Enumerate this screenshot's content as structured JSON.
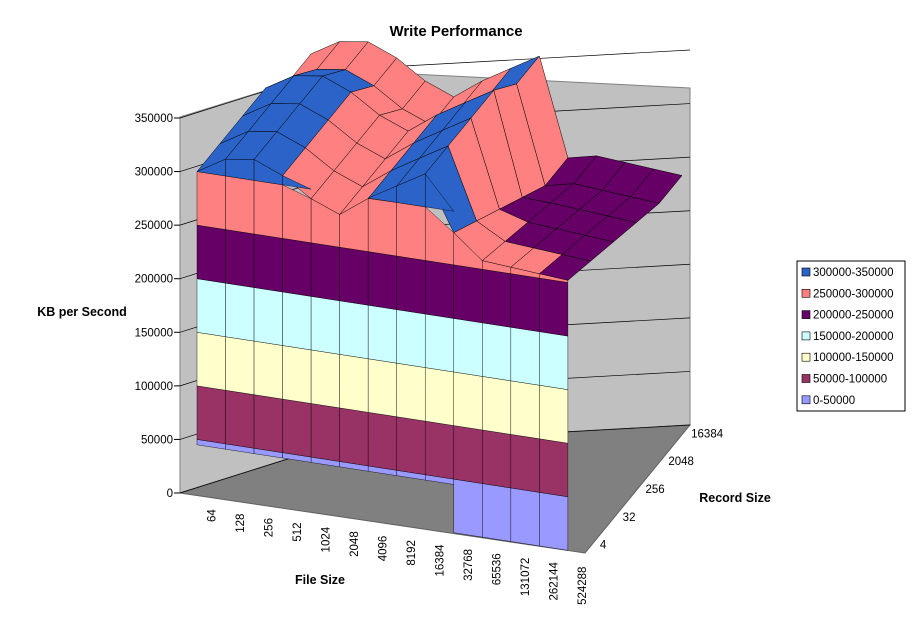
{
  "chart_data": {
    "type": "surface-3d",
    "title": "Write Performance",
    "zlabel": "KB per Second",
    "xlabel": "File Size",
    "ylabel": "Record Size",
    "zlim": [
      0,
      350000
    ],
    "z_ticks": [
      "350000",
      "300000",
      "250000",
      "200000",
      "150000",
      "100000",
      "50000",
      "0"
    ],
    "x_ticks": [
      "64",
      "128",
      "256",
      "512",
      "1024",
      "2048",
      "4096",
      "8192",
      "16384",
      "32768",
      "65536",
      "131072",
      "262144",
      "524288"
    ],
    "y_ticks": [
      "4",
      "32",
      "256",
      "2048",
      "16384"
    ],
    "legend": [
      "300000-350000",
      "250000-300000",
      "200000-250000",
      "150000-200000",
      "100000-150000",
      "50000-100000",
      "0-50000"
    ],
    "band_colors": [
      "#2b63c8",
      "#ff8080",
      "#660066",
      "#ccffff",
      "#ffffcc",
      "#993366",
      "#9999ff"
    ],
    "approx_surface": {
      "description_rows_by_record_size": "values estimated per file size",
      "small_files_peak": 310000,
      "mid_files_peak": 330000,
      "large_files_min": 10000
    }
  }
}
